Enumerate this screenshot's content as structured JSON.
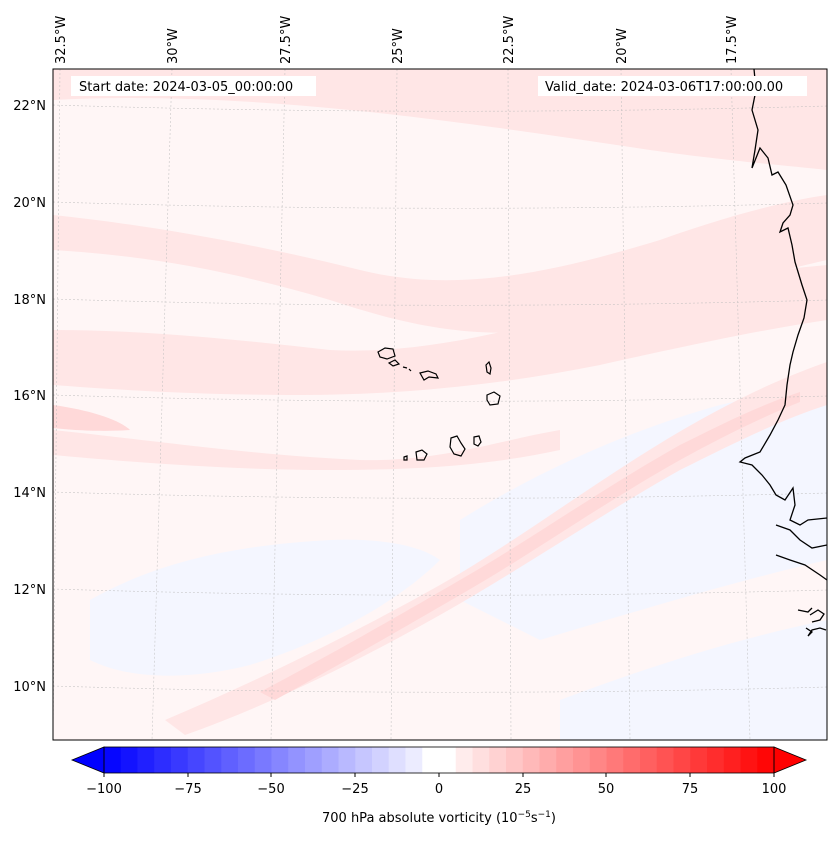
{
  "map": {
    "start_label": "Start date: 2024-03-05_00:00:00",
    "valid_label": "Valid_date: 2024-03-06T17:00:00.00",
    "lon_labels": [
      "32.5°W",
      "30°W",
      "27.5°W",
      "25°W",
      "22.5°W",
      "20°W",
      "17.5°W"
    ],
    "lat_labels": [
      "22°N",
      "20°N",
      "18°N",
      "16°N",
      "14°N",
      "12°N",
      "10°N"
    ],
    "field_colors": {
      "background": "#fff6f6",
      "light_red": "#ffe6e6",
      "mid_red": "#ffd9d9",
      "light_blue": "#f4f6ff",
      "coast": "#000000"
    }
  },
  "colorbar": {
    "label": "700 hPa absolute vorticity (10",
    "label_exp1": "−5",
    "label_mid": "s",
    "label_exp2": "−1",
    "label_end": ")",
    "ticks": [
      "−100",
      "−75",
      "−50",
      "−25",
      "0",
      "25",
      "50",
      "75",
      "100"
    ],
    "min": -100,
    "max": 100,
    "step": 5,
    "min_color": "#0000ff",
    "mid_color": "#ffffff",
    "max_color": "#ff0000"
  }
}
